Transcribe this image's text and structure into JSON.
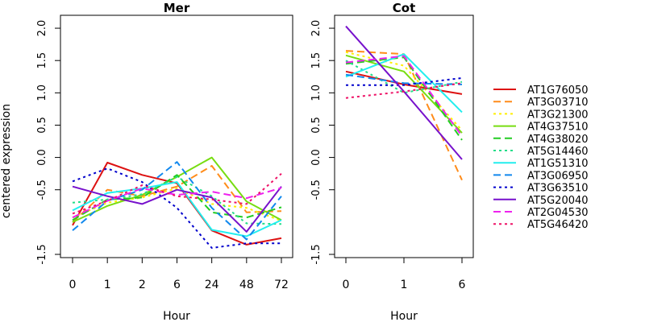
{
  "figure": {
    "ylabel": "centered expression"
  },
  "chart_data": [
    {
      "type": "line",
      "title": "Mer",
      "xlabel": "Hour",
      "ylabel": "centered expression",
      "categories": [
        "0",
        "1",
        "2",
        "6",
        "24",
        "48",
        "72"
      ],
      "ylim": [
        -1.55,
        2.2
      ],
      "yticks": [
        2.0,
        1.5,
        1.0,
        0.5,
        0.0,
        -0.5,
        -1.5
      ],
      "ytick_labels": [
        "2.0",
        "1.5",
        "1.0",
        "0.5",
        "0.0",
        "-0.5",
        "-1.5"
      ],
      "grid": false,
      "series": [
        {
          "name": "AT1G76050",
          "values": [
            -1.05,
            -0.08,
            -0.27,
            -0.4,
            -1.13,
            -1.35,
            -1.25
          ]
        },
        {
          "name": "AT3G03710",
          "values": [
            -1.0,
            -0.5,
            -0.6,
            -0.45,
            -0.13,
            -0.85,
            -0.83
          ]
        },
        {
          "name": "AT3G21300",
          "values": [
            -0.93,
            -0.7,
            -0.62,
            -0.48,
            -0.72,
            -0.78,
            -0.98
          ]
        },
        {
          "name": "AT4G37510",
          "values": [
            -1.0,
            -0.75,
            -0.58,
            -0.3,
            0.0,
            -0.68,
            -0.97
          ]
        },
        {
          "name": "AT4G38020",
          "values": [
            -0.97,
            -0.65,
            -0.62,
            -0.27,
            -0.85,
            -0.93,
            -0.77
          ]
        },
        {
          "name": "AT5G14460",
          "values": [
            -0.7,
            -0.65,
            -0.57,
            -0.3,
            -0.6,
            -1.02,
            -1.03
          ]
        },
        {
          "name": "AT1G51310",
          "values": [
            -0.82,
            -0.55,
            -0.48,
            -0.38,
            -1.12,
            -1.22,
            -0.97
          ]
        },
        {
          "name": "AT3G06950",
          "values": [
            -1.13,
            -0.67,
            -0.5,
            -0.07,
            -0.78,
            -1.27,
            -0.6
          ]
        },
        {
          "name": "AT3G63510",
          "values": [
            -0.37,
            -0.17,
            -0.38,
            -0.78,
            -1.4,
            -1.33,
            -1.33
          ]
        },
        {
          "name": "AT5G20040",
          "values": [
            -0.45,
            -0.6,
            -0.72,
            -0.5,
            -0.62,
            -1.15,
            -0.45
          ]
        },
        {
          "name": "AT2G04530",
          "values": [
            -0.93,
            -0.67,
            -0.48,
            -0.58,
            -0.53,
            -0.63,
            -0.47
          ]
        },
        {
          "name": "AT5G46420",
          "values": [
            -0.87,
            -0.67,
            -0.43,
            -0.6,
            -0.65,
            -0.72,
            -0.25
          ]
        }
      ]
    },
    {
      "type": "line",
      "title": "Cot",
      "xlabel": "Hour",
      "ylabel": "",
      "categories": [
        "0",
        "1",
        "6"
      ],
      "ylim": [
        -1.55,
        2.2
      ],
      "yticks": [
        2.0,
        1.5,
        1.0,
        0.5,
        0.0,
        -0.5,
        -1.5
      ],
      "ytick_labels": [
        "2.0",
        "1.5",
        "1.0",
        "0.5",
        "0.0",
        "-0.5",
        "-1.5"
      ],
      "grid": false,
      "series": [
        {
          "name": "AT1G76050",
          "values": [
            1.33,
            1.13,
            0.98
          ]
        },
        {
          "name": "AT3G03710",
          "values": [
            1.65,
            1.6,
            -0.35
          ]
        },
        {
          "name": "AT3G21300",
          "values": [
            1.63,
            1.42,
            0.42
          ]
        },
        {
          "name": "AT4G37510",
          "values": [
            1.58,
            1.33,
            0.38
          ]
        },
        {
          "name": "AT4G38020",
          "values": [
            1.45,
            1.55,
            0.27
          ]
        },
        {
          "name": "AT5G14460",
          "values": [
            1.5,
            1.0,
            1.17
          ]
        },
        {
          "name": "AT1G51310",
          "values": [
            1.25,
            1.6,
            0.7
          ]
        },
        {
          "name": "AT3G06950",
          "values": [
            1.28,
            1.15,
            1.13
          ]
        },
        {
          "name": "AT3G63510",
          "values": [
            1.12,
            1.12,
            1.23
          ]
        },
        {
          "name": "AT5G20040",
          "values": [
            2.03,
            1.02,
            -0.03
          ]
        },
        {
          "name": "AT2G04530",
          "values": [
            1.47,
            1.57,
            0.33
          ]
        },
        {
          "name": "AT5G46420",
          "values": [
            0.92,
            1.02,
            1.15
          ]
        }
      ]
    }
  ],
  "legend": {
    "position": "right",
    "entries": [
      {
        "name": "AT1G76050",
        "color": "#dd1111",
        "dash": "solid"
      },
      {
        "name": "AT3G03710",
        "color": "#ff8c1a",
        "dash": "dashed"
      },
      {
        "name": "AT3G21300",
        "color": "#ffee00",
        "dash": "dotted"
      },
      {
        "name": "AT4G37510",
        "color": "#77dd11",
        "dash": "solid"
      },
      {
        "name": "AT4G38020",
        "color": "#22cc22",
        "dash": "dashed"
      },
      {
        "name": "AT5G14460",
        "color": "#22dd88",
        "dash": "dotted"
      },
      {
        "name": "AT1G51310",
        "color": "#22eeee",
        "dash": "solid"
      },
      {
        "name": "AT3G06950",
        "color": "#1188ee",
        "dash": "dashed"
      },
      {
        "name": "AT3G63510",
        "color": "#0000cc",
        "dash": "dotted"
      },
      {
        "name": "AT5G20040",
        "color": "#7711cc",
        "dash": "solid"
      },
      {
        "name": "AT2G04530",
        "color": "#ee22ee",
        "dash": "dashed"
      },
      {
        "name": "AT5G46420",
        "color": "#ee1166",
        "dash": "dotted"
      }
    ]
  }
}
